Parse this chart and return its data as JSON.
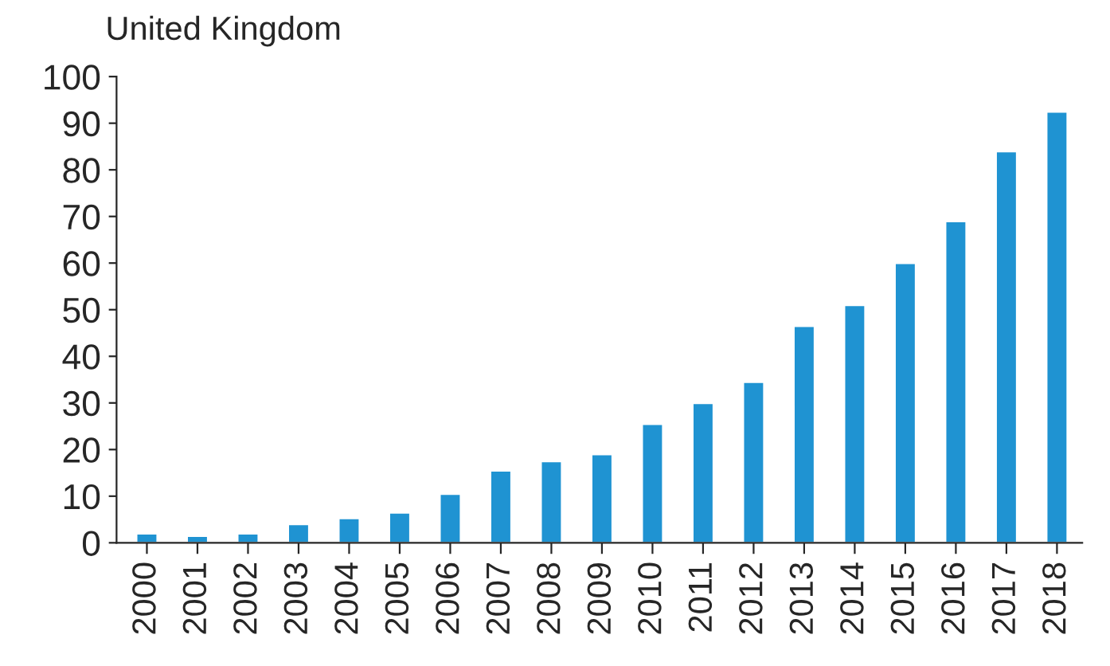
{
  "chart_data": {
    "type": "bar",
    "title": "United Kingdom",
    "categories": [
      "2000",
      "2001",
      "2002",
      "2003",
      "2004",
      "2005",
      "2006",
      "2007",
      "2008",
      "2009",
      "2010",
      "2011",
      "2012",
      "2013",
      "2014",
      "2015",
      "2016",
      "2017",
      "2018"
    ],
    "values": [
      2,
      1.5,
      2,
      4,
      5.3,
      6.5,
      10.5,
      15.5,
      17.5,
      19,
      25.5,
      30,
      34.5,
      46.5,
      51,
      60,
      69,
      84,
      92.5
    ],
    "color": "#1f93d2",
    "ylim": [
      0,
      100
    ],
    "yticks": [
      0,
      10,
      20,
      30,
      40,
      50,
      60,
      70,
      80,
      90,
      100
    ],
    "grid": false,
    "legend": false
  }
}
